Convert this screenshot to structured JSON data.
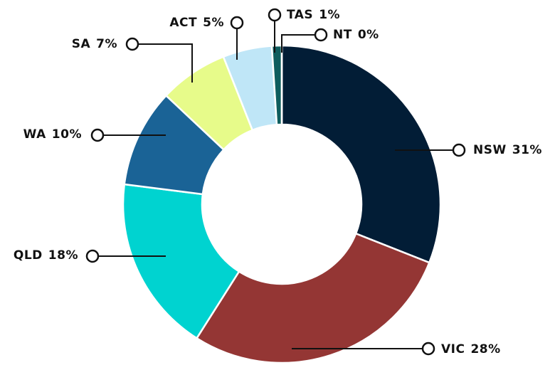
{
  "chart_data": {
    "type": "donut",
    "categories": [
      "NSW",
      "VIC",
      "QLD",
      "WA",
      "SA",
      "ACT",
      "TAS",
      "NT"
    ],
    "values": [
      31,
      28,
      18,
      10,
      7,
      5,
      1,
      0
    ],
    "value_labels": [
      "31%",
      "28%",
      "18%",
      "10%",
      "7%",
      "5%",
      "1%",
      "0%"
    ],
    "colors": [
      "#021d36",
      "#943634",
      "#00d3d0",
      "#1a6396",
      "#e7fb8a",
      "#bfe6f7",
      "#0e5d5e",
      "#4a7ab0"
    ]
  }
}
